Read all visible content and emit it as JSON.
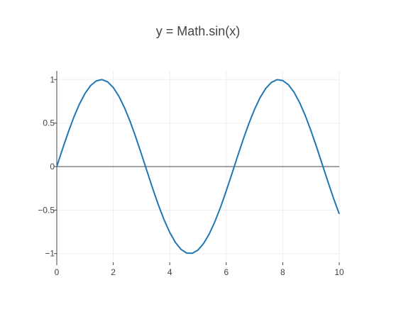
{
  "chart_data": {
    "type": "line",
    "title": "y = Math.sin(x)",
    "xlabel": "",
    "ylabel": "",
    "xlim": [
      0,
      10
    ],
    "ylim": [
      -1.1,
      1.1
    ],
    "x_ticks": [
      0,
      2,
      4,
      6,
      8,
      10
    ],
    "x_tick_labels": [
      "0",
      "2",
      "4",
      "6",
      "8",
      "10"
    ],
    "y_ticks": [
      -1,
      -0.5,
      0,
      0.5,
      1
    ],
    "y_tick_labels": [
      "−1",
      "−0.5",
      "0",
      "0.5",
      "1"
    ],
    "grid": true,
    "colors": {
      "line": "#1f77b4",
      "grid": "#eeeeee",
      "zeroline": "#444444",
      "axis": "#444444",
      "text": "#444444"
    },
    "series": [
      {
        "x": [
          0,
          0.2,
          0.4,
          0.6,
          0.8,
          1,
          1.2,
          1.4,
          1.6,
          1.8,
          2,
          2.2,
          2.4,
          2.6,
          2.8,
          3,
          3.2,
          3.4,
          3.6,
          3.8,
          4,
          4.2,
          4.4,
          4.6,
          4.8,
          5,
          5.2,
          5.4,
          5.6,
          5.8,
          6,
          6.2,
          6.4,
          6.6,
          6.8,
          7,
          7.2,
          7.4,
          7.6,
          7.8,
          8,
          8.2,
          8.4,
          8.6,
          8.8,
          9,
          9.2,
          9.4,
          9.6,
          9.8,
          10
        ],
        "y": [
          0,
          0.199,
          0.389,
          0.565,
          0.717,
          0.841,
          0.932,
          0.985,
          1,
          0.974,
          0.909,
          0.808,
          0.675,
          0.516,
          0.335,
          0.141,
          -0.058,
          -0.256,
          -0.443,
          -0.612,
          -0.757,
          -0.872,
          -0.952,
          -0.994,
          -0.996,
          -0.959,
          -0.883,
          -0.773,
          -0.631,
          -0.465,
          -0.279,
          -0.083,
          0.117,
          0.312,
          0.494,
          0.657,
          0.794,
          0.899,
          0.968,
          0.999,
          0.989,
          0.941,
          0.855,
          0.734,
          0.585,
          0.412,
          0.223,
          0.025,
          -0.174,
          -0.366,
          -0.544
        ]
      }
    ]
  }
}
